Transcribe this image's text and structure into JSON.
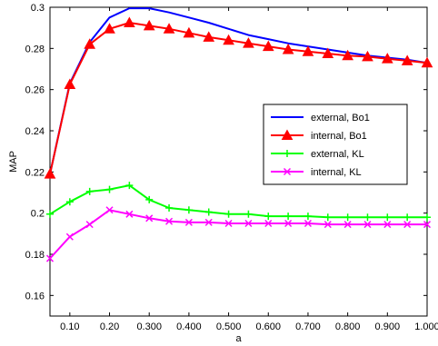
{
  "chart_data": {
    "type": "line",
    "title": "",
    "xlabel": "a",
    "ylabel": "MAP",
    "xlim": [
      0.05,
      1.0
    ],
    "ylim": [
      0.15,
      0.3
    ],
    "xticks": [
      0.1,
      0.2,
      0.3,
      0.4,
      0.5,
      0.6,
      0.7,
      0.8,
      0.9,
      1.0
    ],
    "xtick_labels": [
      "0.10",
      "0.20",
      "0.300",
      "0.400",
      "0.500",
      "0.600",
      "0.700",
      "0.800",
      "0.900",
      "1.000"
    ],
    "yticks": [
      0.16,
      0.18,
      0.2,
      0.22,
      0.24,
      0.26,
      0.28,
      0.3
    ],
    "ytick_labels": [
      "0.16",
      "0.18",
      "0.2",
      "0.22",
      "0.24",
      "0.26",
      "0.28",
      "0.3"
    ],
    "grid": false,
    "legend_position": "right",
    "x": [
      0.05,
      0.1,
      0.15,
      0.2,
      0.25,
      0.3,
      0.35,
      0.4,
      0.45,
      0.5,
      0.55,
      0.6,
      0.65,
      0.7,
      0.75,
      0.8,
      0.85,
      0.9,
      0.95,
      1.0
    ],
    "series": [
      {
        "name": "external, Bo1",
        "color": "#0000ff",
        "marker": "none",
        "values": [
          0.219,
          0.263,
          0.283,
          0.295,
          0.2995,
          0.2995,
          0.2975,
          0.295,
          0.2925,
          0.2895,
          0.2865,
          0.2845,
          0.2825,
          0.281,
          0.2795,
          0.278,
          0.2765,
          0.2755,
          0.2745,
          0.273
        ]
      },
      {
        "name": "internal, Bo1",
        "color": "#ff0000",
        "marker": "triangle",
        "values": [
          0.219,
          0.2625,
          0.282,
          0.2895,
          0.2925,
          0.291,
          0.2895,
          0.2875,
          0.2855,
          0.284,
          0.2825,
          0.281,
          0.2795,
          0.2785,
          0.2775,
          0.2765,
          0.276,
          0.275,
          0.274,
          0.273
        ]
      },
      {
        "name": "external, KL",
        "color": "#00ff00",
        "marker": "plus",
        "values": [
          0.1995,
          0.2055,
          0.2105,
          0.2115,
          0.2135,
          0.2065,
          0.2025,
          0.2015,
          0.2005,
          0.1995,
          0.1995,
          0.1985,
          0.1985,
          0.1985,
          0.198,
          0.198,
          0.198,
          0.198,
          0.198,
          0.198
        ]
      },
      {
        "name": "internal, KL",
        "color": "#ff00ff",
        "marker": "x",
        "values": [
          0.178,
          0.1885,
          0.1945,
          0.2015,
          0.1995,
          0.1975,
          0.196,
          0.1955,
          0.1955,
          0.195,
          0.195,
          0.195,
          0.195,
          0.195,
          0.1945,
          0.1945,
          0.1945,
          0.1945,
          0.1945,
          0.1945
        ]
      }
    ]
  }
}
